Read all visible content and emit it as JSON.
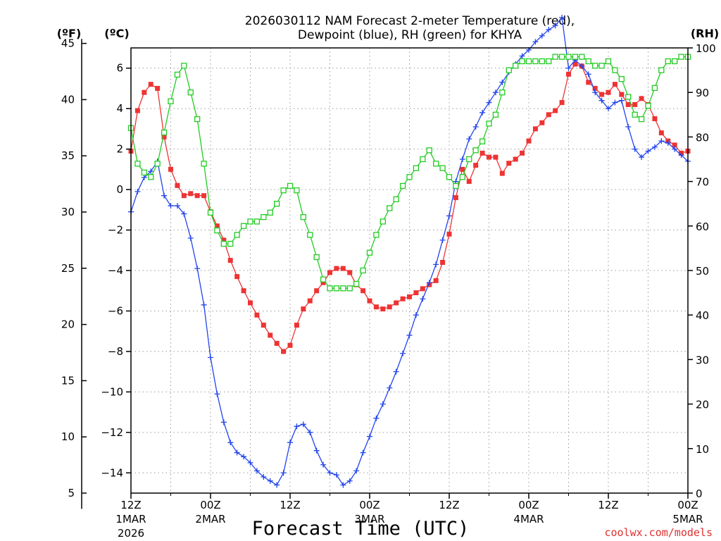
{
  "chart_data": {
    "type": "line",
    "title_line1": "2026030112 NAM Forecast 2-meter Temperature (red),",
    "title_line2": "Dewpoint (blue), RH (green) for KHYA",
    "xlabel": "Forecast Time (UTC)",
    "credit": "coolwx.com/models",
    "units": {
      "fahrenheit": "(ºF)",
      "celsius": "(ºC)",
      "rh": "(RH)"
    },
    "x_range_hours": [
      0,
      84
    ],
    "celsius_range": [
      -15.0,
      7.0
    ],
    "rh_range": [
      0,
      100
    ],
    "x_ticks": [
      {
        "hour": 0,
        "time": "12Z",
        "date": "1MAR",
        "year": "2026"
      },
      {
        "hour": 12,
        "time": "00Z",
        "date": "2MAR",
        "year": ""
      },
      {
        "hour": 24,
        "time": "12Z",
        "date": "",
        "year": ""
      },
      {
        "hour": 36,
        "time": "00Z",
        "date": "3MAR",
        "year": ""
      },
      {
        "hour": 48,
        "time": "12Z",
        "date": "",
        "year": ""
      },
      {
        "hour": 60,
        "time": "00Z",
        "date": "4MAR",
        "year": ""
      },
      {
        "hour": 72,
        "time": "12Z",
        "date": "",
        "year": ""
      },
      {
        "hour": 84,
        "time": "00Z",
        "date": "5MAR",
        "year": ""
      }
    ],
    "celsius_ticks": [
      "6",
      "4",
      "2",
      "0",
      "−2",
      "−4",
      "−6",
      "−8",
      "−10",
      "−12",
      "−14"
    ],
    "celsius_tick_values": [
      6,
      4,
      2,
      0,
      -2,
      -4,
      -6,
      -8,
      -10,
      -12,
      -14
    ],
    "fahrenheit_ticks": [
      "45",
      "40",
      "35",
      "30",
      "25",
      "20",
      "15",
      "10",
      "5"
    ],
    "fahrenheit_tick_values": [
      45,
      40,
      35,
      30,
      25,
      20,
      15,
      10,
      5
    ],
    "rh_ticks": [
      "100",
      "90",
      "80",
      "70",
      "60",
      "50",
      "40",
      "30",
      "20",
      "10",
      "0"
    ],
    "rh_tick_values": [
      100,
      90,
      80,
      70,
      60,
      50,
      40,
      30,
      20,
      10,
      0
    ],
    "series": [
      {
        "name": "2-meter Temperature",
        "units": "C",
        "color": "#ee3333",
        "marker": "filled-square",
        "hours": [
          0,
          1,
          2,
          3,
          4,
          5,
          6,
          7,
          8,
          9,
          10,
          11,
          12,
          13,
          14,
          15,
          16,
          17,
          18,
          19,
          20,
          21,
          22,
          23,
          24,
          25,
          26,
          27,
          28,
          29,
          30,
          31,
          32,
          33,
          34,
          35,
          36,
          37,
          38,
          39,
          40,
          41,
          42,
          43,
          44,
          45,
          46,
          47,
          48,
          49,
          50,
          51,
          52,
          53,
          54,
          55,
          56,
          57,
          58,
          59,
          60,
          61,
          62,
          63,
          64,
          65,
          66,
          67,
          68,
          69,
          70,
          71,
          72,
          73,
          74,
          75,
          76,
          77,
          78,
          79,
          80,
          81,
          82,
          83,
          84
        ],
        "values": [
          1.9,
          3.9,
          4.8,
          5.2,
          5.0,
          2.6,
          1.0,
          0.2,
          -0.3,
          -0.2,
          -0.3,
          -0.3,
          -1.1,
          -1.8,
          -2.5,
          -3.5,
          -4.3,
          -5.0,
          -5.6,
          -6.2,
          -6.7,
          -7.2,
          -7.6,
          -8.0,
          -7.7,
          -6.7,
          -5.9,
          -5.5,
          -5.0,
          -4.6,
          -4.1,
          -3.9,
          -3.9,
          -4.1,
          -4.7,
          -5.0,
          -5.5,
          -5.8,
          -5.9,
          -5.8,
          -5.6,
          -5.4,
          -5.3,
          -5.1,
          -4.9,
          -4.7,
          -4.5,
          -3.6,
          -2.2,
          -0.4,
          1.0,
          0.4,
          1.2,
          1.8,
          1.6,
          1.6,
          0.8,
          1.3,
          1.5,
          1.8,
          2.4,
          3.0,
          3.3,
          3.7,
          3.9,
          4.3,
          5.7,
          6.2,
          6.1,
          5.3,
          5.0,
          4.7,
          4.8,
          5.2,
          4.7,
          4.2,
          4.2,
          4.5,
          4.2,
          3.5,
          2.8,
          2.4,
          2.2,
          1.8,
          1.9
        ]
      },
      {
        "name": "Dewpoint",
        "units": "C",
        "color": "#2244ee",
        "marker": "plus",
        "hours": [
          0,
          1,
          2,
          3,
          4,
          5,
          6,
          7,
          8,
          9,
          10,
          11,
          12,
          13,
          14,
          15,
          16,
          17,
          18,
          19,
          20,
          21,
          22,
          23,
          24,
          25,
          26,
          27,
          28,
          29,
          30,
          31,
          32,
          33,
          34,
          35,
          36,
          37,
          38,
          39,
          40,
          41,
          42,
          43,
          44,
          45,
          46,
          47,
          48,
          49,
          50,
          51,
          52,
          53,
          54,
          55,
          56,
          57,
          58,
          59,
          60,
          61,
          62,
          63,
          64,
          65,
          66,
          67,
          68,
          69,
          70,
          71,
          72,
          73,
          74,
          75,
          76,
          77,
          78,
          79,
          80,
          81,
          82,
          83,
          84
        ],
        "values": [
          -1.1,
          -0.1,
          0.6,
          0.9,
          1.4,
          -0.3,
          -0.8,
          -0.8,
          -1.2,
          -2.4,
          -3.9,
          -5.7,
          -8.3,
          -10.1,
          -11.5,
          -12.5,
          -13.0,
          -13.2,
          -13.5,
          -13.9,
          -14.2,
          -14.4,
          -14.6,
          -14.0,
          -12.5,
          -11.7,
          -11.6,
          -12.0,
          -12.9,
          -13.6,
          -14.0,
          -14.1,
          -14.6,
          -14.4,
          -13.9,
          -13.0,
          -12.2,
          -11.3,
          -10.6,
          -9.8,
          -9.0,
          -8.1,
          -7.2,
          -6.2,
          -5.4,
          -4.6,
          -3.7,
          -2.5,
          -1.3,
          0.4,
          1.5,
          2.5,
          3.1,
          3.8,
          4.3,
          4.8,
          5.3,
          5.8,
          6.2,
          6.6,
          6.9,
          7.3,
          7.6,
          7.9,
          8.1,
          8.5,
          6.0,
          6.4,
          6.1,
          5.7,
          4.8,
          4.4,
          4.0,
          4.3,
          4.4,
          3.1,
          2.0,
          1.6,
          1.9,
          2.1,
          2.4,
          2.3,
          2.0,
          1.7,
          1.4
        ]
      },
      {
        "name": "Relative Humidity",
        "units": "%",
        "color": "#22cc22",
        "marker": "open-square",
        "hours": [
          0,
          1,
          2,
          3,
          4,
          5,
          6,
          7,
          8,
          9,
          10,
          11,
          12,
          13,
          14,
          15,
          16,
          17,
          18,
          19,
          20,
          21,
          22,
          23,
          24,
          25,
          26,
          27,
          28,
          29,
          30,
          31,
          32,
          33,
          34,
          35,
          36,
          37,
          38,
          39,
          40,
          41,
          42,
          43,
          44,
          45,
          46,
          47,
          48,
          49,
          50,
          51,
          52,
          53,
          54,
          55,
          56,
          57,
          58,
          59,
          60,
          61,
          62,
          63,
          64,
          65,
          66,
          67,
          68,
          69,
          70,
          71,
          72,
          73,
          74,
          75,
          76,
          77,
          78,
          79,
          80,
          81,
          82,
          83,
          84
        ],
        "values": [
          82,
          74,
          72,
          71,
          74,
          81,
          88,
          94,
          96,
          90,
          84,
          74,
          63,
          59,
          56,
          56,
          58,
          60,
          61,
          61,
          62,
          63,
          65,
          68,
          69,
          68,
          62,
          58,
          53,
          48,
          46,
          46,
          46,
          46,
          47,
          50,
          54,
          58,
          61,
          64,
          66,
          69,
          71,
          73,
          75,
          77,
          74,
          73,
          71,
          69,
          71,
          75,
          77,
          79,
          83,
          85,
          90,
          95,
          96,
          97,
          97,
          97,
          97,
          97,
          98,
          98,
          98,
          98,
          98,
          97,
          96,
          96,
          97,
          95,
          93,
          89,
          85,
          84,
          87,
          91,
          95,
          97,
          97,
          98,
          98
        ]
      }
    ]
  }
}
